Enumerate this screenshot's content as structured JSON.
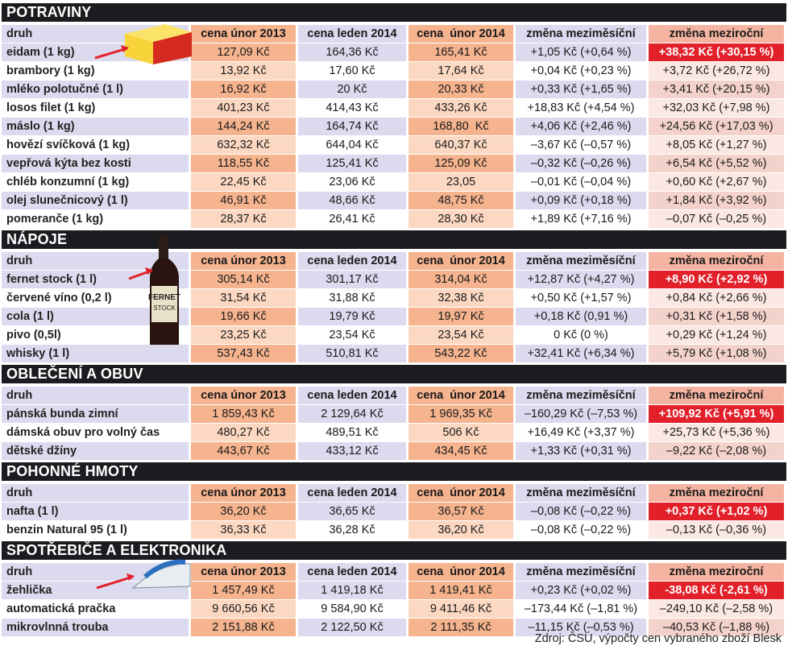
{
  "sections": [
    {
      "title": "POTRAVINY",
      "highlight_row": 0,
      "columns": [
        "druh",
        "cena únor 2013",
        "cena leden 2014",
        "cena  únor 2014",
        "změna meziměsíční",
        "změna meziroční"
      ],
      "rows": [
        [
          "eidam (1 kg)",
          "127,09 Kč",
          "164,36 Kč",
          "165,41 Kč",
          "+1,05 Kč (+0,64 %)",
          "+38,32 Kč (+30,15 %)"
        ],
        [
          "brambory (1 kg)",
          "13,92 Kč",
          "17,60 Kč",
          "17,64 Kč",
          "+0,04 Kč (+0,23 %)",
          "+3,72 Kč (+26,72 %)"
        ],
        [
          "mléko polotučné (1 l)",
          "16,92 Kč",
          "20 Kč",
          "20,33 Kč",
          "+0,33 Kč (+1,65 %)",
          "+3,41 Kč (+20,15 %)"
        ],
        [
          "losos filet (1 kg)",
          "401,23 Kč",
          "414,43 Kč",
          "433,26 Kč",
          "+18,83 Kč (+4,54 %)",
          "+32,03 Kč (+7,98 %)"
        ],
        [
          "máslo (1 kg)",
          "144,24 Kč",
          "164,74 Kč",
          "168,80  Kč",
          "+4,06 Kč (+2,46 %)",
          "+24,56 Kč (+17,03 %)"
        ],
        [
          "hovězí svíčková (1 kg)",
          "632,32 Kč",
          "644,04 Kč",
          "640,37 Kč",
          "–3,67 Kč (–0,57 %)",
          "+8,05 Kč (+1,27 %)"
        ],
        [
          "vepřová kýta bez kosti",
          "118,55 Kč",
          "125,41 Kč",
          "125,09 Kč",
          "–0,32 Kč (–0,26 %)",
          "+6,54 Kč (+5,52 %)"
        ],
        [
          "chléb konzumní (1 kg)",
          "22,45 Kč",
          "23,06 Kč",
          "23,05",
          "–0,01 Kč (–0,04 %)",
          "+0,60 Kč (+2,67 %)"
        ],
        [
          "olej slunečnicový (1 l)",
          "46,91 Kč",
          "48,66 Kč",
          "48,75 Kč",
          "+0,09 Kč (+0,18 %)",
          "+1,84 Kč (+3,92 %)"
        ],
        [
          "pomeranče (1 kg)",
          "28,37 Kč",
          "26,41 Kč",
          "28,30 Kč",
          "+1,89 Kč (+7,16 %)",
          "–0,07 Kč (–0,25 %)"
        ]
      ]
    },
    {
      "title": "NÁPOJE",
      "highlight_row": 0,
      "columns": [
        "druh",
        "cena únor 2013",
        "cena leden 2014",
        "cena  únor 2014",
        "změna meziměsíční",
        "změna meziroční"
      ],
      "rows": [
        [
          "fernet stock (1 l)",
          "305,14 Kč",
          "301,17 Kč",
          "314,04 Kč",
          "+12,87 Kč (+4,27 %)",
          "+8,90 Kč (+2,92 %)"
        ],
        [
          "červené víno (0,2 l)",
          "31,54 Kč",
          "31,88 Kč",
          "32,38 Kč",
          "+0,50 Kč (+1,57 %)",
          "+0,84 Kč (+2,66 %)"
        ],
        [
          "cola (1 l)",
          "19,66 Kč",
          "19,79 Kč",
          "19,97 Kč",
          "+0,18 Kč (0,91 %)",
          "+0,31 Kč (+1,58 %)"
        ],
        [
          "pivo (0,5l)",
          "23,25 Kč",
          "23,54 Kč",
          "23,54 Kč",
          "0 Kč (0 %)",
          "+0,29 Kč (+1,24 %)"
        ],
        [
          "whisky (1 l)",
          "537,43 Kč",
          "510,81 Kč",
          "543,22 Kč",
          "+32,41 Kč (+6,34 %)",
          "+5,79 Kč (+1,08 %)"
        ]
      ]
    },
    {
      "title": "OBLEČENÍ  A OBUV",
      "highlight_row": 0,
      "columns": [
        "druh",
        "cena únor 2013",
        "cena leden 2014",
        "cena  únor 2014",
        "změna meziměsíční",
        "změna meziroční"
      ],
      "rows": [
        [
          "pánská bunda zimní",
          "1 859,43 Kč",
          "2 129,64 Kč",
          "1 969,35 Kč",
          "–160,29 Kč (–7,53 %)",
          "+109,92 Kč (+5,91 %)"
        ],
        [
          "dámská obuv pro volný čas",
          "480,27 Kč",
          "489,51 Kč",
          "506 Kč",
          "+16,49 Kč (+3,37 %)",
          "+25,73 Kč (+5,36 %)"
        ],
        [
          "dětské džíny",
          "443,67 Kč",
          "433,12 Kč",
          "434,45 Kč",
          "+1,33 Kč (+0,31 %)",
          "–9,22 Kč (–2,08 %)"
        ]
      ]
    },
    {
      "title": "POHONNÉ HMOTY",
      "highlight_row": 0,
      "columns": [
        "druh",
        "cena únor 2013",
        "cena leden 2014",
        "cena  únor 2014",
        "změna meziměsíční",
        "změna meziroční"
      ],
      "rows": [
        [
          "nafta (1 l)",
          "36,20 Kč",
          "36,65 Kč",
          "36,57 Kč",
          "–0,08 Kč (–0,22 %)",
          "+0,37 Kč (+1,02 %)"
        ],
        [
          "benzin Natural 95 (1 l)",
          "36,33 Kč",
          "36,28 Kč",
          "36,20 Kč",
          "–0,08 Kč (–0,22 %)",
          "–0,13 Kč (–0,36 %)"
        ]
      ]
    },
    {
      "title": "SPOTŘEBIČE A ELEKTRONIKA",
      "highlight_row": 0,
      "columns": [
        "druh",
        "cena únor 2013",
        "cena leden 2014",
        "cena  únor 2014",
        "změna meziměsíční",
        "změna meziroční"
      ],
      "rows": [
        [
          "žehlička",
          "1 457,49 Kč",
          "1 419,18 Kč",
          "1 419,41 Kč",
          "+0,23 Kč (+0,02 %)",
          "-38,08 Kč (-2,61 %)"
        ],
        [
          "automatická pračka",
          "9 660,56 Kč",
          "9 584,90 Kč",
          "9 411,46 Kč",
          "–173,44 Kč (–1,81 %)",
          "–249,10 Kč (–2,58 %)"
        ],
        [
          "mikrovlnná trouba",
          "2 151,88 Kč",
          "2 122,50 Kč",
          "2 111,35 Kč",
          "–11,15 Kč (–0,53 %)",
          "–40,53 Kč (–1,88 %)"
        ]
      ]
    }
  ],
  "source": "Zdroj: ČSÚ, výpočty cen vybraného zboží Blesk"
}
